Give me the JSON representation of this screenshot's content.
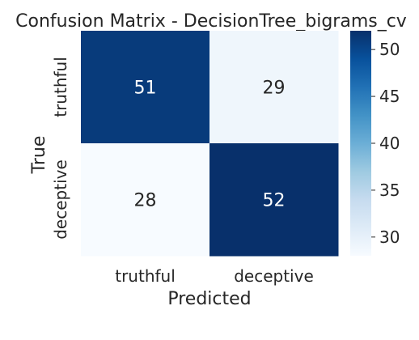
{
  "chart_data": {
    "type": "heatmap",
    "title": "Confusion Matrix - DecisionTree_bigrams_cv",
    "xlabel": "Predicted",
    "ylabel": "True",
    "x_categories": [
      "truthful",
      "deceptive"
    ],
    "y_categories": [
      "truthful",
      "deceptive"
    ],
    "values": [
      [
        51,
        29
      ],
      [
        28,
        52
      ]
    ],
    "annotations": [
      "51",
      "29",
      "28",
      "52"
    ],
    "colormap": "Blues",
    "colorbar": {
      "range": [
        28,
        52
      ],
      "ticks": [
        30,
        35,
        40,
        45,
        50
      ],
      "tick_labels": [
        "30",
        "35",
        "40",
        "45",
        "50"
      ]
    },
    "colors": {
      "low": "#f7fbff",
      "high": "#08306b",
      "text_dark": "#262626",
      "text_light": "#ffffff"
    }
  }
}
